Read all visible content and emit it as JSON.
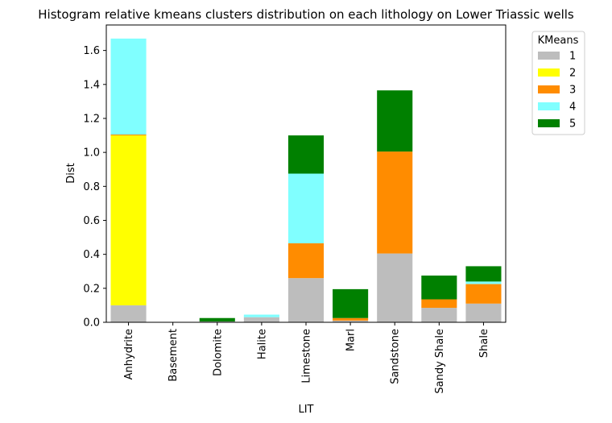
{
  "chart_data": {
    "type": "bar",
    "stacked": true,
    "title": "Histogram relative kmeans clusters distribution on each lithology on Lower Triassic wells",
    "xlabel": "LIT",
    "ylabel": "Dist",
    "ylim": [
      0,
      1.75
    ],
    "yticks": [
      "0.0",
      "0.2",
      "0.4",
      "0.6",
      "0.8",
      "1.0",
      "1.2",
      "1.4",
      "1.6"
    ],
    "grid": false,
    "legend_position": "outside-right",
    "legend_title": "KMeans",
    "categories": [
      "Anhydrite",
      "Basement",
      "Dolomite",
      "Halite",
      "Limestone",
      "Marl",
      "Sandstone",
      "Sandy Shale",
      "Shale"
    ],
    "series": [
      {
        "name": "1",
        "color": "#bdbdbd",
        "values": [
          0.1,
          0.0,
          0.005,
          0.03,
          0.26,
          0.01,
          0.405,
          0.085,
          0.11
        ]
      },
      {
        "name": "2",
        "color": "#ffff00",
        "values": [
          1.0,
          0.0,
          0.0,
          0.0,
          0.0,
          0.0,
          0.0,
          0.0,
          0.0
        ]
      },
      {
        "name": "3",
        "color": "#ff8c00",
        "values": [
          0.005,
          0.0,
          0.0,
          0.0,
          0.205,
          0.015,
          0.6,
          0.05,
          0.115
        ]
      },
      {
        "name": "4",
        "color": "#80ffff",
        "values": [
          0.565,
          0.0,
          0.0,
          0.015,
          0.41,
          0.0,
          0.0,
          0.0,
          0.015
        ]
      },
      {
        "name": "5",
        "color": "#008000",
        "values": [
          0.0,
          0.0,
          0.02,
          0.0,
          0.225,
          0.17,
          0.36,
          0.14,
          0.09
        ]
      }
    ]
  }
}
